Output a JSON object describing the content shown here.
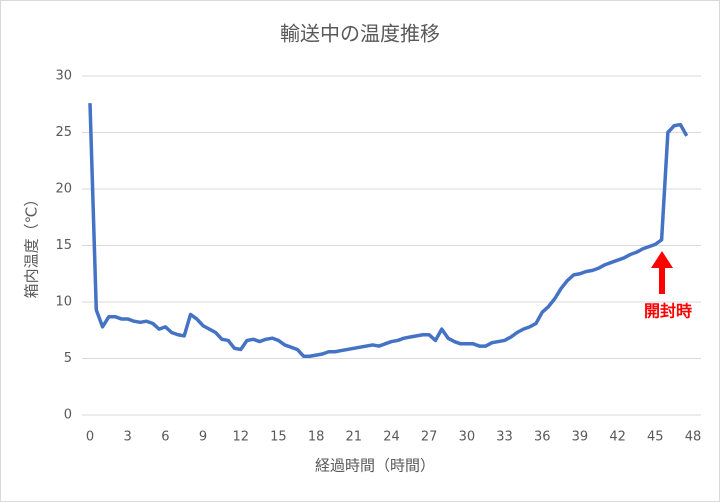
{
  "chart_data": {
    "type": "line",
    "title": "輸送中の温度推移",
    "x_label": "経過時間（時間）",
    "y_label": "箱内温度（℃）",
    "annotation": "開封時",
    "color": "#4472c4",
    "annotation_color": "#ff0000",
    "grid": true,
    "x": [
      0,
      0.5,
      1,
      1.5,
      2,
      2.5,
      3,
      3.5,
      4,
      4.5,
      5,
      5.5,
      6,
      6.5,
      7,
      7.5,
      8,
      8.5,
      9,
      9.5,
      10,
      10.5,
      11,
      11.5,
      12,
      12.5,
      13,
      13.5,
      14,
      14.5,
      15,
      15.5,
      16,
      16.5,
      17,
      17.5,
      18,
      18.5,
      19,
      19.5,
      20,
      20.5,
      21,
      21.5,
      22,
      22.5,
      23,
      23.5,
      24,
      24.5,
      25,
      25.5,
      26,
      26.5,
      27,
      27.5,
      28,
      28.5,
      29,
      29.5,
      30,
      30.5,
      31,
      31.5,
      32,
      32.5,
      33,
      33.5,
      34,
      34.5,
      35,
      35.5,
      36,
      36.5,
      37,
      37.5,
      38,
      38.5,
      39,
      39.5,
      40,
      40.5,
      41,
      41.5,
      42,
      42.5,
      43,
      43.5,
      44,
      44.5,
      45,
      45.5,
      46,
      46.5,
      47,
      47.5
    ],
    "values": [
      27.6,
      9.3,
      7.8,
      8.7,
      8.7,
      8.5,
      8.5,
      8.3,
      8.2,
      8.3,
      8.1,
      7.6,
      7.8,
      7.3,
      7.1,
      7.0,
      8.9,
      8.5,
      7.9,
      7.6,
      7.3,
      6.7,
      6.6,
      5.9,
      5.8,
      6.6,
      6.7,
      6.5,
      6.7,
      6.8,
      6.6,
      6.2,
      6.0,
      5.8,
      5.2,
      5.2,
      5.3,
      5.4,
      5.6,
      5.6,
      5.7,
      5.8,
      5.9,
      6.0,
      6.1,
      6.2,
      6.1,
      6.3,
      6.5,
      6.6,
      6.8,
      6.9,
      7.0,
      7.1,
      7.1,
      6.6,
      7.6,
      6.8,
      6.5,
      6.3,
      6.3,
      6.3,
      6.1,
      6.1,
      6.4,
      6.5,
      6.6,
      6.9,
      7.3,
      7.6,
      7.8,
      8.1,
      9.1,
      9.6,
      10.3,
      11.2,
      11.9,
      12.4,
      12.5,
      12.7,
      12.8,
      13.0,
      13.3,
      13.5,
      13.7,
      13.9,
      14.2,
      14.4,
      14.7,
      14.9,
      15.1,
      15.5,
      25.0,
      25.6,
      25.7,
      24.7
    ],
    "xlim": [
      0,
      48
    ],
    "xticks": [
      0,
      3,
      6,
      9,
      12,
      15,
      18,
      21,
      24,
      27,
      30,
      33,
      36,
      39,
      42,
      45,
      48
    ],
    "ylim": [
      0,
      30
    ],
    "yticks": [
      0,
      5,
      10,
      15,
      20,
      25,
      30
    ]
  }
}
